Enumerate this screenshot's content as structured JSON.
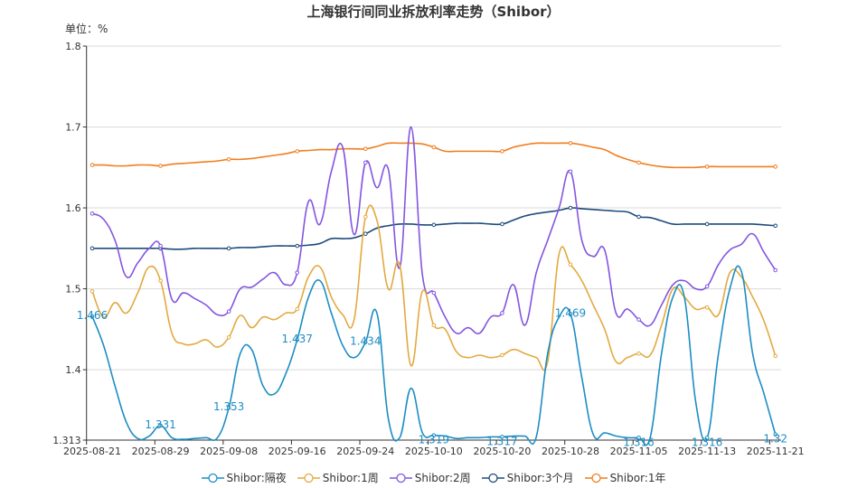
{
  "chart_data": {
    "type": "line",
    "title": "上海银行间同业拆放利率走势（Shibor）",
    "ylabel": "单位：%",
    "ylim": [
      1.313,
      1.8
    ],
    "yticks": [
      "1.313",
      "1.4",
      "1.5",
      "1.6",
      "1.7",
      "1.8"
    ],
    "grid": true,
    "legend_position": "bottom",
    "x": [
      "2025-08-21",
      "2025-08-22",
      "2025-08-25",
      "2025-08-26",
      "2025-08-27",
      "2025-08-28",
      "2025-08-29",
      "2025-09-01",
      "2025-09-02",
      "2025-09-03",
      "2025-09-04",
      "2025-09-05",
      "2025-09-08",
      "2025-09-09",
      "2025-09-10",
      "2025-09-11",
      "2025-09-12",
      "2025-09-15",
      "2025-09-16",
      "2025-09-17",
      "2025-09-18",
      "2025-09-19",
      "2025-09-22",
      "2025-09-23",
      "2025-09-24",
      "2025-09-25",
      "2025-09-26",
      "2025-09-29",
      "2025-09-30",
      "2025-10-09",
      "2025-10-10",
      "2025-10-13",
      "2025-10-14",
      "2025-10-15",
      "2025-10-16",
      "2025-10-17",
      "2025-10-20",
      "2025-10-21",
      "2025-10-22",
      "2025-10-23",
      "2025-10-24",
      "2025-10-27",
      "2025-10-28",
      "2025-10-29",
      "2025-10-30",
      "2025-10-31",
      "2025-11-03",
      "2025-11-04",
      "2025-11-05",
      "2025-11-06",
      "2025-11-07",
      "2025-11-10",
      "2025-11-11",
      "2025-11-12",
      "2025-11-13",
      "2025-11-14",
      "2025-11-17",
      "2025-11-18",
      "2025-11-19",
      "2025-11-20",
      "2025-11-21"
    ],
    "xtick_labels": [
      "2025-08-21",
      "2025-08-29",
      "2025-09-08",
      "2025-09-16",
      "2025-09-24",
      "2025-10-10",
      "2025-10-20",
      "2025-10-28",
      "2025-11-05",
      "2025-11-13",
      "2025-11-21"
    ],
    "series": [
      {
        "name": "Shibor:隔夜",
        "color": "#1c8dc4",
        "values": [
          1.466,
          1.43,
          1.38,
          1.335,
          1.315,
          1.318,
          1.331,
          1.316,
          1.314,
          1.315,
          1.316,
          1.316,
          1.353,
          1.42,
          1.425,
          1.38,
          1.37,
          1.395,
          1.437,
          1.49,
          1.51,
          1.47,
          1.43,
          1.415,
          1.434,
          1.47,
          1.34,
          1.316,
          1.377,
          1.322,
          1.319,
          1.318,
          1.315,
          1.316,
          1.316,
          1.317,
          1.317,
          1.318,
          1.318,
          1.317,
          1.42,
          1.465,
          1.469,
          1.39,
          1.32,
          1.322,
          1.318,
          1.316,
          1.316,
          1.316,
          1.42,
          1.49,
          1.49,
          1.36,
          1.316,
          1.42,
          1.5,
          1.522,
          1.42,
          1.37,
          1.32
        ],
        "data_labels": [
          "1.466",
          "1.331",
          "1.353",
          "1.437",
          "1.434",
          "1.319",
          "1.317",
          "1.469",
          "1.316",
          "1.316",
          "1.32"
        ]
      },
      {
        "name": "Shibor:1周",
        "color": "#e3a93f",
        "values": [
          1.497,
          1.465,
          1.483,
          1.47,
          1.495,
          1.527,
          1.51,
          1.445,
          1.432,
          1.432,
          1.437,
          1.428,
          1.44,
          1.467,
          1.452,
          1.465,
          1.462,
          1.47,
          1.475,
          1.515,
          1.527,
          1.49,
          1.468,
          1.462,
          1.589,
          1.585,
          1.5,
          1.53,
          1.405,
          1.497,
          1.455,
          1.45,
          1.422,
          1.415,
          1.418,
          1.415,
          1.418,
          1.425,
          1.42,
          1.415,
          1.41,
          1.543,
          1.53,
          1.51,
          1.48,
          1.45,
          1.41,
          1.415,
          1.42,
          1.418,
          1.455,
          1.5,
          1.49,
          1.475,
          1.477,
          1.468,
          1.52,
          1.515,
          1.49,
          1.46,
          1.417
        ]
      },
      {
        "name": "Shibor:2周",
        "color": "#8455e0",
        "values": [
          1.593,
          1.586,
          1.56,
          1.515,
          1.532,
          1.55,
          1.553,
          1.487,
          1.495,
          1.488,
          1.48,
          1.468,
          1.472,
          1.5,
          1.502,
          1.512,
          1.52,
          1.505,
          1.52,
          1.608,
          1.58,
          1.645,
          1.675,
          1.567,
          1.656,
          1.625,
          1.648,
          1.526,
          1.7,
          1.517,
          1.495,
          1.465,
          1.445,
          1.452,
          1.445,
          1.465,
          1.47,
          1.505,
          1.455,
          1.52,
          1.56,
          1.6,
          1.645,
          1.56,
          1.54,
          1.548,
          1.47,
          1.475,
          1.462,
          1.455,
          1.48,
          1.505,
          1.51,
          1.5,
          1.503,
          1.53,
          1.548,
          1.555,
          1.568,
          1.545,
          1.523
        ]
      },
      {
        "name": "Shibor:3个月",
        "color": "#1d4b7c",
        "values": [
          1.55,
          1.55,
          1.55,
          1.55,
          1.55,
          1.55,
          1.55,
          1.549,
          1.549,
          1.55,
          1.55,
          1.55,
          1.55,
          1.551,
          1.551,
          1.552,
          1.553,
          1.553,
          1.553,
          1.554,
          1.556,
          1.562,
          1.562,
          1.563,
          1.568,
          1.575,
          1.578,
          1.58,
          1.58,
          1.579,
          1.579,
          1.58,
          1.581,
          1.581,
          1.581,
          1.58,
          1.58,
          1.585,
          1.59,
          1.593,
          1.595,
          1.597,
          1.6,
          1.599,
          1.598,
          1.597,
          1.596,
          1.595,
          1.589,
          1.588,
          1.584,
          1.58,
          1.58,
          1.58,
          1.58,
          1.58,
          1.58,
          1.58,
          1.58,
          1.579,
          1.578
        ]
      },
      {
        "name": "Shibor:1年",
        "color": "#f07e1e",
        "values": [
          1.653,
          1.653,
          1.652,
          1.652,
          1.653,
          1.653,
          1.652,
          1.654,
          1.655,
          1.656,
          1.657,
          1.658,
          1.66,
          1.66,
          1.661,
          1.663,
          1.665,
          1.667,
          1.67,
          1.671,
          1.672,
          1.672,
          1.673,
          1.673,
          1.673,
          1.676,
          1.68,
          1.68,
          1.68,
          1.679,
          1.675,
          1.67,
          1.67,
          1.67,
          1.67,
          1.67,
          1.67,
          1.675,
          1.678,
          1.68,
          1.68,
          1.68,
          1.68,
          1.678,
          1.675,
          1.672,
          1.665,
          1.66,
          1.656,
          1.653,
          1.651,
          1.65,
          1.65,
          1.65,
          1.651,
          1.651,
          1.651,
          1.651,
          1.651,
          1.651,
          1.651
        ]
      }
    ]
  }
}
